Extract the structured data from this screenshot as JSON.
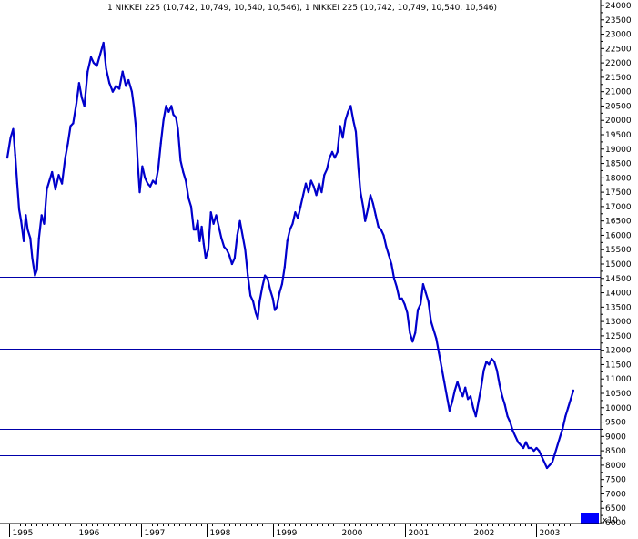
{
  "chart_data": {
    "type": "line",
    "title": "1 NIKKEI 225 (10,742, 10,749, 10,540, 10,546), 1 NIKKEI 225 (10,742, 10,749, 10,540, 10,546)",
    "xlabel": "",
    "ylabel": "",
    "ylim": [
      5750,
      24300
    ],
    "xlim": [
      1994.97,
      2003.56
    ],
    "grid": false,
    "y_axis_side": "right",
    "y_ticks": [
      6000,
      6500,
      7000,
      7500,
      8000,
      8500,
      9000,
      9500,
      10000,
      10500,
      11000,
      11500,
      12000,
      12500,
      13000,
      13500,
      14000,
      14500,
      15000,
      15500,
      16000,
      16500,
      17000,
      17500,
      18000,
      18500,
      19000,
      19500,
      20000,
      20500,
      21000,
      21500,
      22000,
      22500,
      23000,
      23500,
      24000
    ],
    "x_ticks": [
      {
        "label": "1995",
        "x": 1995.0
      },
      {
        "label": "1996",
        "x": 1996.0
      },
      {
        "label": "1997",
        "x": 1997.0
      },
      {
        "label": "1998",
        "x": 1998.0
      },
      {
        "label": "1999",
        "x": 1999.0
      },
      {
        "label": "2000",
        "x": 2000.0
      },
      {
        "label": "2001",
        "x": 2001.0
      },
      {
        "label": "2002",
        "x": 2002.0
      },
      {
        "label": "2003",
        "x": 2003.0
      }
    ],
    "horizontal_lines": [
      14550,
      12050,
      9250,
      8350
    ],
    "colors": {
      "series": "#0000cc",
      "hline": "#0000aa",
      "axis": "#000000",
      "volume": "#0000ff"
    },
    "volume_multiplier_label": "x10",
    "series": [
      {
        "values": [
          [
            1994.97,
            18700
          ],
          [
            1995.02,
            19400
          ],
          [
            1995.06,
            19700
          ],
          [
            1995.09,
            18800
          ],
          [
            1995.12,
            17800
          ],
          [
            1995.15,
            16900
          ],
          [
            1995.18,
            16500
          ],
          [
            1995.22,
            15800
          ],
          [
            1995.25,
            16700
          ],
          [
            1995.28,
            16200
          ],
          [
            1995.32,
            15900
          ],
          [
            1995.35,
            15200
          ],
          [
            1995.39,
            14600
          ],
          [
            1995.42,
            14800
          ],
          [
            1995.45,
            15900
          ],
          [
            1995.49,
            16700
          ],
          [
            1995.53,
            16400
          ],
          [
            1995.57,
            17600
          ],
          [
            1995.61,
            17900
          ],
          [
            1995.65,
            18200
          ],
          [
            1995.7,
            17600
          ],
          [
            1995.75,
            18100
          ],
          [
            1995.8,
            17800
          ],
          [
            1995.85,
            18700
          ],
          [
            1995.89,
            19200
          ],
          [
            1995.93,
            19800
          ],
          [
            1995.97,
            19900
          ],
          [
            1996.02,
            20600
          ],
          [
            1996.06,
            21300
          ],
          [
            1996.1,
            20800
          ],
          [
            1996.14,
            20500
          ],
          [
            1996.19,
            21700
          ],
          [
            1996.24,
            22200
          ],
          [
            1996.28,
            22000
          ],
          [
            1996.33,
            21900
          ],
          [
            1996.38,
            22300
          ],
          [
            1996.43,
            22700
          ],
          [
            1996.47,
            21800
          ],
          [
            1996.52,
            21300
          ],
          [
            1996.57,
            21000
          ],
          [
            1996.62,
            21200
          ],
          [
            1996.67,
            21100
          ],
          [
            1996.72,
            21700
          ],
          [
            1996.77,
            21200
          ],
          [
            1996.81,
            21400
          ],
          [
            1996.86,
            21000
          ],
          [
            1996.89,
            20500
          ],
          [
            1996.92,
            19800
          ],
          [
            1996.95,
            18500
          ],
          [
            1996.98,
            17500
          ],
          [
            1997.02,
            18400
          ],
          [
            1997.06,
            18000
          ],
          [
            1997.1,
            17800
          ],
          [
            1997.14,
            17700
          ],
          [
            1997.18,
            17900
          ],
          [
            1997.22,
            17800
          ],
          [
            1997.26,
            18300
          ],
          [
            1997.3,
            19200
          ],
          [
            1997.34,
            20000
          ],
          [
            1997.38,
            20500
          ],
          [
            1997.42,
            20300
          ],
          [
            1997.46,
            20500
          ],
          [
            1997.49,
            20200
          ],
          [
            1997.53,
            20100
          ],
          [
            1997.56,
            19700
          ],
          [
            1997.6,
            18600
          ],
          [
            1997.64,
            18200
          ],
          [
            1997.68,
            17900
          ],
          [
            1997.72,
            17300
          ],
          [
            1997.76,
            17000
          ],
          [
            1997.8,
            16200
          ],
          [
            1997.83,
            16200
          ],
          [
            1997.86,
            16500
          ],
          [
            1997.89,
            15800
          ],
          [
            1997.92,
            16300
          ],
          [
            1997.95,
            15700
          ],
          [
            1997.98,
            15200
          ],
          [
            1998.02,
            15500
          ],
          [
            1998.06,
            16800
          ],
          [
            1998.1,
            16400
          ],
          [
            1998.14,
            16700
          ],
          [
            1998.18,
            16300
          ],
          [
            1998.22,
            15900
          ],
          [
            1998.26,
            15600
          ],
          [
            1998.3,
            15500
          ],
          [
            1998.34,
            15300
          ],
          [
            1998.38,
            15000
          ],
          [
            1998.42,
            15200
          ],
          [
            1998.46,
            16000
          ],
          [
            1998.5,
            16500
          ],
          [
            1998.54,
            16000
          ],
          [
            1998.58,
            15500
          ],
          [
            1998.62,
            14600
          ],
          [
            1998.66,
            13900
          ],
          [
            1998.7,
            13700
          ],
          [
            1998.74,
            13300
          ],
          [
            1998.77,
            13100
          ],
          [
            1998.8,
            13700
          ],
          [
            1998.84,
            14200
          ],
          [
            1998.88,
            14600
          ],
          [
            1998.92,
            14500
          ],
          [
            1998.96,
            14100
          ],
          [
            1999.0,
            13800
          ],
          [
            1999.03,
            13400
          ],
          [
            1999.06,
            13500
          ],
          [
            1999.1,
            14000
          ],
          [
            1999.14,
            14300
          ],
          [
            1999.18,
            14900
          ],
          [
            1999.22,
            15800
          ],
          [
            1999.26,
            16200
          ],
          [
            1999.3,
            16400
          ],
          [
            1999.34,
            16800
          ],
          [
            1999.38,
            16600
          ],
          [
            1999.42,
            17000
          ],
          [
            1999.46,
            17400
          ],
          [
            1999.5,
            17800
          ],
          [
            1999.54,
            17500
          ],
          [
            1999.58,
            17900
          ],
          [
            1999.62,
            17700
          ],
          [
            1999.66,
            17400
          ],
          [
            1999.7,
            17800
          ],
          [
            1999.74,
            17500
          ],
          [
            1999.78,
            18100
          ],
          [
            1999.82,
            18300
          ],
          [
            1999.86,
            18700
          ],
          [
            1999.9,
            18900
          ],
          [
            1999.94,
            18700
          ],
          [
            1999.98,
            18900
          ],
          [
            2000.02,
            19800
          ],
          [
            2000.06,
            19400
          ],
          [
            2000.1,
            20000
          ],
          [
            2000.14,
            20300
          ],
          [
            2000.18,
            20500
          ],
          [
            2000.22,
            20000
          ],
          [
            2000.26,
            19600
          ],
          [
            2000.28,
            18900
          ],
          [
            2000.3,
            18300
          ],
          [
            2000.33,
            17500
          ],
          [
            2000.37,
            17000
          ],
          [
            2000.4,
            16500
          ],
          [
            2000.44,
            16900
          ],
          [
            2000.48,
            17400
          ],
          [
            2000.52,
            17100
          ],
          [
            2000.56,
            16700
          ],
          [
            2000.6,
            16300
          ],
          [
            2000.64,
            16200
          ],
          [
            2000.68,
            16000
          ],
          [
            2000.72,
            15600
          ],
          [
            2000.76,
            15300
          ],
          [
            2000.8,
            15000
          ],
          [
            2000.84,
            14500
          ],
          [
            2000.88,
            14200
          ],
          [
            2000.92,
            13800
          ],
          [
            2000.96,
            13800
          ],
          [
            2001.0,
            13600
          ],
          [
            2001.04,
            13300
          ],
          [
            2001.08,
            12600
          ],
          [
            2001.12,
            12300
          ],
          [
            2001.16,
            12600
          ],
          [
            2001.2,
            13400
          ],
          [
            2001.24,
            13600
          ],
          [
            2001.28,
            14300
          ],
          [
            2001.32,
            14000
          ],
          [
            2001.36,
            13700
          ],
          [
            2001.4,
            13000
          ],
          [
            2001.44,
            12700
          ],
          [
            2001.48,
            12400
          ],
          [
            2001.52,
            11900
          ],
          [
            2001.56,
            11400
          ],
          [
            2001.6,
            10900
          ],
          [
            2001.64,
            10400
          ],
          [
            2001.68,
            9900
          ],
          [
            2001.72,
            10200
          ],
          [
            2001.76,
            10600
          ],
          [
            2001.8,
            10900
          ],
          [
            2001.84,
            10600
          ],
          [
            2001.88,
            10400
          ],
          [
            2001.92,
            10700
          ],
          [
            2001.96,
            10300
          ],
          [
            2002.0,
            10400
          ],
          [
            2002.04,
            10000
          ],
          [
            2002.08,
            9700
          ],
          [
            2002.12,
            10200
          ],
          [
            2002.16,
            10700
          ],
          [
            2002.2,
            11300
          ],
          [
            2002.24,
            11600
          ],
          [
            2002.28,
            11500
          ],
          [
            2002.32,
            11700
          ],
          [
            2002.36,
            11600
          ],
          [
            2002.4,
            11300
          ],
          [
            2002.44,
            10800
          ],
          [
            2002.48,
            10400
          ],
          [
            2002.52,
            10100
          ],
          [
            2002.56,
            9700
          ],
          [
            2002.6,
            9500
          ],
          [
            2002.64,
            9200
          ],
          [
            2002.68,
            9000
          ],
          [
            2002.72,
            8800
          ],
          [
            2002.76,
            8700
          ],
          [
            2002.8,
            8600
          ],
          [
            2002.84,
            8800
          ],
          [
            2002.88,
            8600
          ],
          [
            2002.92,
            8600
          ],
          [
            2002.96,
            8500
          ],
          [
            2003.0,
            8600
          ],
          [
            2003.04,
            8500
          ],
          [
            2003.08,
            8300
          ],
          [
            2003.12,
            8100
          ],
          [
            2003.16,
            7900
          ],
          [
            2003.2,
            8000
          ],
          [
            2003.24,
            8100
          ],
          [
            2003.28,
            8400
          ],
          [
            2003.32,
            8700
          ],
          [
            2003.36,
            9000
          ],
          [
            2003.4,
            9300
          ],
          [
            2003.44,
            9700
          ],
          [
            2003.48,
            10000
          ],
          [
            2003.52,
            10300
          ],
          [
            2003.56,
            10600
          ]
        ]
      }
    ]
  }
}
